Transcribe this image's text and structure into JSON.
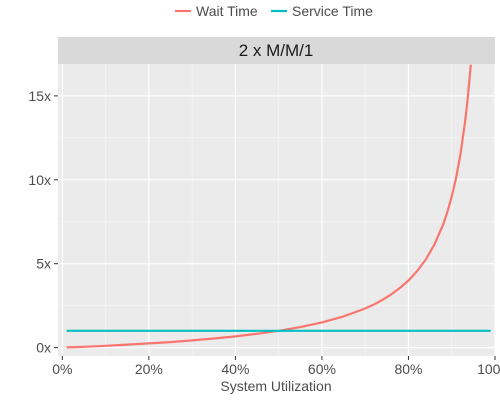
{
  "chart_data": {
    "type": "line",
    "facet_title": "2 x M/M/1",
    "xlabel": "System Utilization",
    "ylabel": "",
    "xlim": [
      -0.01,
      1.0
    ],
    "ylim": [
      -0.5,
      16.9
    ],
    "x_ticks": [
      0,
      0.2,
      0.4,
      0.6,
      0.8,
      1.0
    ],
    "x_tick_labels": [
      "0%",
      "20%",
      "40%",
      "60%",
      "80%",
      "100%"
    ],
    "y_ticks": [
      0,
      5,
      10,
      15
    ],
    "y_tick_labels": [
      "0x",
      "5x",
      "10x",
      "15x"
    ],
    "grid": true,
    "legend_position": "top",
    "series": [
      {
        "name": "Wait Time",
        "color": "#F8766D",
        "x": [
          0.01,
          0.05,
          0.1,
          0.15,
          0.2,
          0.25,
          0.3,
          0.35,
          0.4,
          0.45,
          0.5,
          0.55,
          0.6,
          0.65,
          0.7,
          0.72,
          0.74,
          0.76,
          0.78,
          0.8,
          0.82,
          0.84,
          0.86,
          0.88,
          0.89,
          0.9,
          0.91,
          0.92,
          0.93,
          0.935,
          0.94,
          0.944
        ],
        "y": [
          0.01,
          0.05,
          0.11,
          0.18,
          0.25,
          0.33,
          0.43,
          0.54,
          0.67,
          0.82,
          1.0,
          1.22,
          1.5,
          1.86,
          2.33,
          2.57,
          2.85,
          3.17,
          3.55,
          4.0,
          4.56,
          5.25,
          6.14,
          7.33,
          8.09,
          9.0,
          10.11,
          11.5,
          13.29,
          14.38,
          15.67,
          16.86
        ]
      },
      {
        "name": "Service Time",
        "color": "#00BFC4",
        "x": [
          0.01,
          0.99
        ],
        "y": [
          1.0,
          1.0
        ]
      }
    ]
  }
}
